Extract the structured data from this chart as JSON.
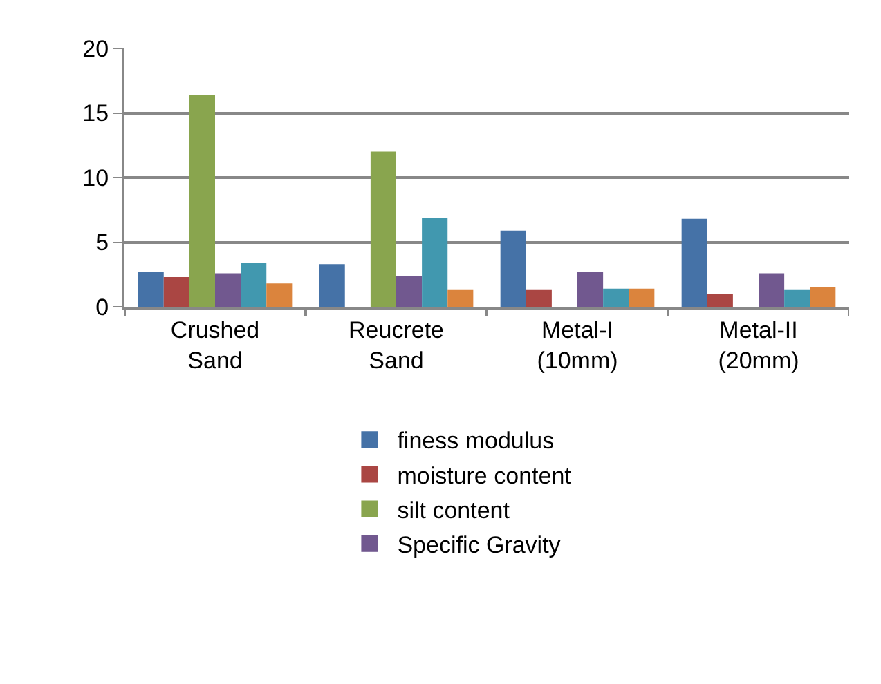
{
  "chart_data": {
    "type": "bar",
    "categories": [
      "Crushed Sand",
      "Reucrete Sand",
      "Metal-I (10mm)",
      "Metal-II (20mm)"
    ],
    "series": [
      {
        "name": "finess modulus",
        "color": "#4572a7",
        "values": [
          2.7,
          3.3,
          5.9,
          6.8
        ]
      },
      {
        "name": "moisture content",
        "color": "#aa4643",
        "values": [
          2.3,
          null,
          1.3,
          1.0
        ]
      },
      {
        "name": "silt content",
        "color": "#89a54e",
        "values": [
          16.4,
          12.0,
          null,
          null
        ]
      },
      {
        "name": "Specific Gravity",
        "color": "#71588f",
        "values": [
          2.6,
          2.4,
          2.7,
          2.6
        ]
      },
      {
        "color": "#4198af",
        "values": [
          3.4,
          6.9,
          1.4,
          1.3
        ]
      },
      {
        "color": "#db843d",
        "values": [
          1.8,
          1.3,
          1.4,
          1.5
        ]
      }
    ],
    "ylim": [
      0,
      20
    ],
    "yticks": [
      0,
      5,
      10,
      15,
      20
    ],
    "grid": "y",
    "legend": "bottom"
  }
}
